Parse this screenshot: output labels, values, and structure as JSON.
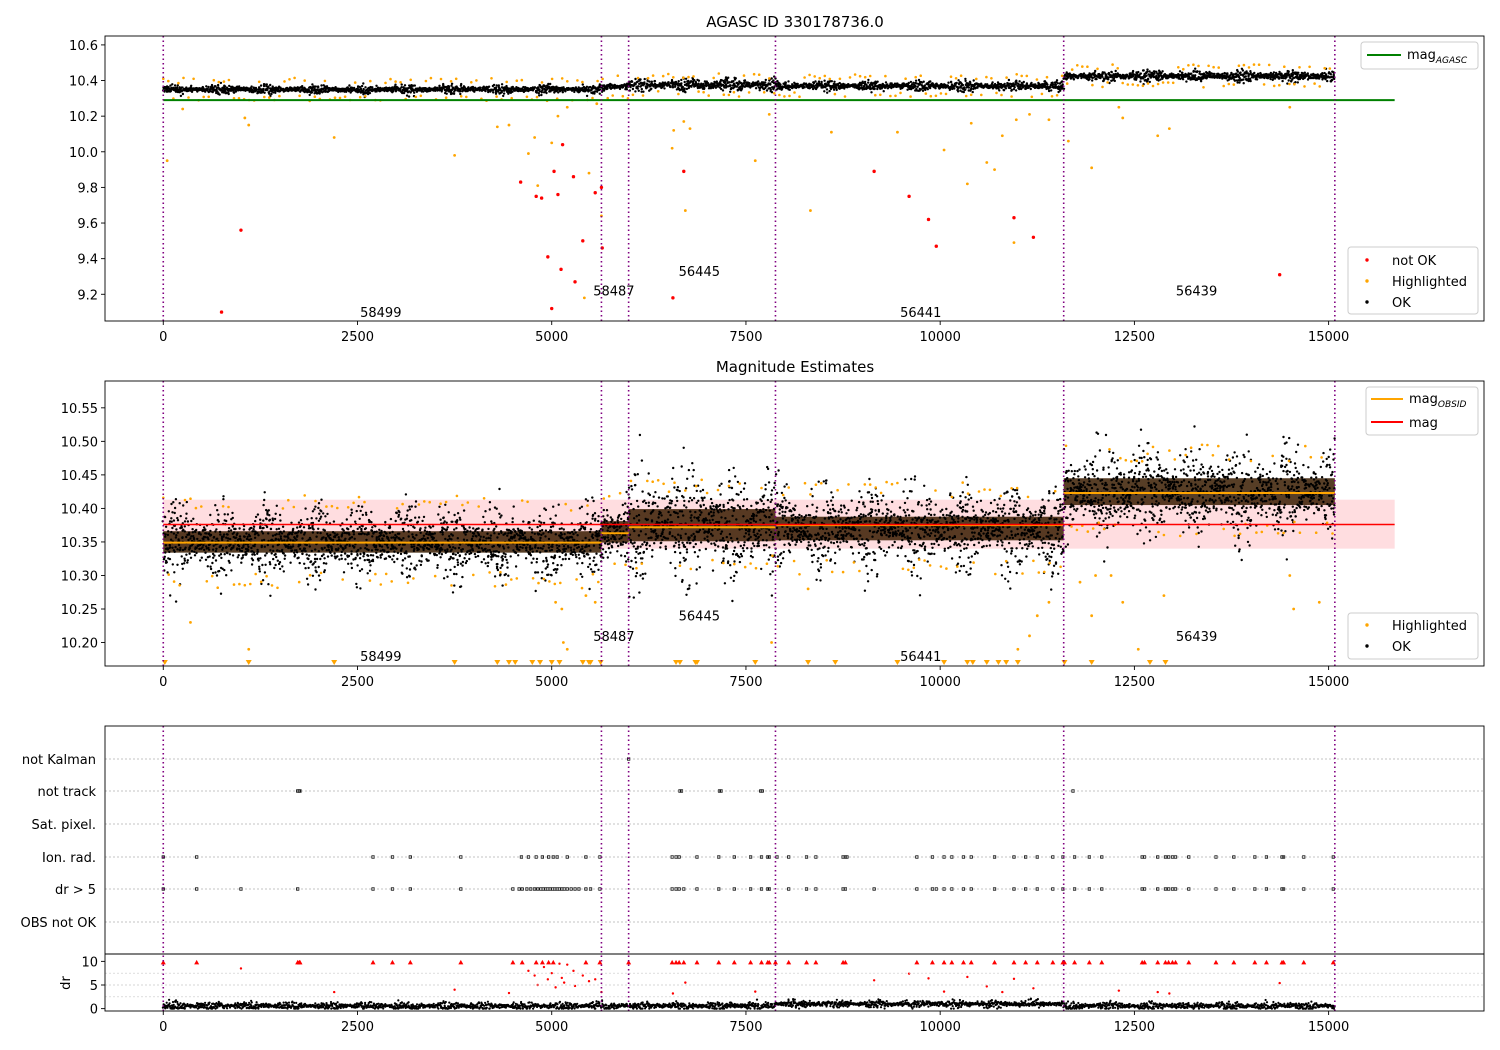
{
  "chart_data": [
    {
      "type": "scatter",
      "title": "AGASC ID 330178736.0",
      "xlim": [
        -750,
        17000
      ],
      "ylim": [
        9.05,
        10.65
      ],
      "x_ticks": [
        0,
        2500,
        5000,
        7500,
        10000,
        12500,
        15000
      ],
      "y_ticks": [
        9.2,
        9.4,
        9.6,
        9.8,
        10.0,
        10.2,
        10.4,
        10.6
      ],
      "y_tick_labels": [
        "9.2",
        "9.4",
        "9.6",
        "9.8",
        "10.0",
        "10.2",
        "10.4",
        "10.6"
      ],
      "obs_boundaries": [
        0,
        5640,
        5990,
        7880,
        11590,
        15080
      ],
      "obs_labels": [
        {
          "text": "58499",
          "x": 2800,
          "y": 9.1
        },
        {
          "text": "58487",
          "x": 5800,
          "y": 9.22
        },
        {
          "text": "56445",
          "x": 6900,
          "y": 9.33
        },
        {
          "text": "56441",
          "x": 9750,
          "y": 9.1
        },
        {
          "text": "56439",
          "x": 13300,
          "y": 9.22
        }
      ],
      "segments": [
        {
          "x0": 0,
          "x1": 5640,
          "level": 10.35,
          "spread": 0.02
        },
        {
          "x0": 5640,
          "x1": 5990,
          "level": 10.365,
          "spread": 0.02
        },
        {
          "x0": 5990,
          "x1": 7880,
          "level": 10.375,
          "spread": 0.03
        },
        {
          "x0": 7880,
          "x1": 11590,
          "level": 10.37,
          "spread": 0.022
        },
        {
          "x0": 11590,
          "x1": 15080,
          "level": 10.425,
          "spread": 0.025
        }
      ],
      "reference_lines": [
        {
          "name": "mag_AGASC",
          "y": 10.29,
          "x0": 0,
          "x1": 15850,
          "color": "#008000"
        }
      ],
      "not_ok_points": [
        [
          750,
          9.1
        ],
        [
          1000,
          9.56
        ],
        [
          4600,
          9.83
        ],
        [
          4800,
          9.75
        ],
        [
          4870,
          9.74
        ],
        [
          4950,
          9.41
        ],
        [
          5000,
          9.12
        ],
        [
          5030,
          9.89
        ],
        [
          5080,
          9.76
        ],
        [
          5120,
          9.34
        ],
        [
          5140,
          10.04
        ],
        [
          5280,
          9.86
        ],
        [
          5300,
          9.27
        ],
        [
          5400,
          9.5
        ],
        [
          5560,
          9.77
        ],
        [
          5640,
          9.8
        ],
        [
          5650,
          9.46
        ],
        [
          6560,
          9.18
        ],
        [
          6700,
          9.89
        ],
        [
          9150,
          9.89
        ],
        [
          9600,
          9.75
        ],
        [
          9850,
          9.62
        ],
        [
          9950,
          9.47
        ],
        [
          10950,
          9.63
        ],
        [
          11200,
          9.52
        ],
        [
          14370,
          9.31
        ]
      ],
      "highlighted_extra_points": [
        [
          50,
          9.95
        ],
        [
          250,
          10.24
        ],
        [
          1050,
          10.19
        ],
        [
          1100,
          10.15
        ],
        [
          2200,
          10.08
        ],
        [
          3750,
          9.98
        ],
        [
          4300,
          10.14
        ],
        [
          4450,
          10.15
        ],
        [
          4700,
          9.99
        ],
        [
          4780,
          10.08
        ],
        [
          4820,
          9.81
        ],
        [
          5000,
          10.05
        ],
        [
          5080,
          10.2
        ],
        [
          5200,
          10.25
        ],
        [
          5420,
          9.18
        ],
        [
          5480,
          9.88
        ],
        [
          5580,
          10.27
        ],
        [
          5640,
          9.64
        ],
        [
          6550,
          10.02
        ],
        [
          6570,
          10.12
        ],
        [
          6700,
          10.17
        ],
        [
          6720,
          9.67
        ],
        [
          6780,
          10.13
        ],
        [
          7620,
          9.95
        ],
        [
          7800,
          10.21
        ],
        [
          8330,
          9.67
        ],
        [
          8600,
          10.11
        ],
        [
          9450,
          10.11
        ],
        [
          10050,
          10.01
        ],
        [
          10350,
          9.82
        ],
        [
          10400,
          10.16
        ],
        [
          10600,
          9.94
        ],
        [
          10700,
          9.9
        ],
        [
          10800,
          10.09
        ],
        [
          10950,
          9.49
        ],
        [
          10980,
          10.18
        ],
        [
          11150,
          10.21
        ],
        [
          11400,
          10.18
        ],
        [
          11650,
          10.06
        ],
        [
          11950,
          9.91
        ],
        [
          12300,
          10.25
        ],
        [
          12350,
          10.19
        ],
        [
          12800,
          10.09
        ],
        [
          12950,
          10.13
        ],
        [
          14500,
          10.25
        ]
      ],
      "legend": [
        {
          "label": "mag",
          "sub": "AGASC",
          "color": "#008000",
          "kind": "line",
          "position": "upper-right"
        },
        {
          "label": "not OK",
          "color": "#ff0000",
          "kind": "point",
          "position": "lower-right"
        },
        {
          "label": "Highlighted",
          "color": "#ffa500",
          "kind": "point",
          "position": "lower-right"
        },
        {
          "label": "OK",
          "color": "#000000",
          "kind": "point",
          "position": "lower-right"
        }
      ]
    },
    {
      "type": "scatter",
      "title": "Magnitude Estimates",
      "xlim": [
        -750,
        17000
      ],
      "ylim": [
        10.165,
        10.59
      ],
      "x_ticks": [
        0,
        2500,
        5000,
        7500,
        10000,
        12500,
        15000
      ],
      "y_ticks": [
        10.2,
        10.25,
        10.3,
        10.35,
        10.4,
        10.45,
        10.5,
        10.55
      ],
      "y_tick_labels": [
        "10.20",
        "10.25",
        "10.30",
        "10.35",
        "10.40",
        "10.45",
        "10.50",
        "10.55"
      ],
      "obs_boundaries": [
        0,
        5640,
        5990,
        7880,
        11590,
        15080
      ],
      "obs_labels": [
        {
          "text": "58499",
          "x": 2800,
          "y": 10.18
        },
        {
          "text": "58487",
          "x": 5800,
          "y": 10.21
        },
        {
          "text": "56445",
          "x": 6900,
          "y": 10.24
        },
        {
          "text": "56441",
          "x": 9750,
          "y": 10.18
        },
        {
          "text": "56439",
          "x": 13300,
          "y": 10.21
        }
      ],
      "segments": [
        {
          "x0": 0,
          "x1": 5640,
          "level": 10.35,
          "spread": 0.02
        },
        {
          "x0": 5640,
          "x1": 5990,
          "level": 10.365,
          "spread": 0.02
        },
        {
          "x0": 5990,
          "x1": 7880,
          "level": 10.375,
          "spread": 0.03
        },
        {
          "x0": 7880,
          "x1": 11590,
          "level": 10.37,
          "spread": 0.022
        },
        {
          "x0": 11590,
          "x1": 15080,
          "level": 10.425,
          "spread": 0.025
        }
      ],
      "mag_band": {
        "x0": 0,
        "x1": 15850,
        "y0": 10.34,
        "y1": 10.413,
        "color": "#ffdde0"
      },
      "mag_line": {
        "y": 10.376,
        "x0": 0,
        "x1": 15850,
        "color": "#ff0000"
      },
      "mag_obsid_levels": [
        {
          "x0": 0,
          "x1": 5640,
          "y": 10.349
        },
        {
          "x0": 5640,
          "x1": 5990,
          "y": 10.363
        },
        {
          "x0": 5990,
          "x1": 7880,
          "y": 10.372
        },
        {
          "x0": 7880,
          "x1": 11590,
          "y": 10.375
        },
        {
          "x0": 11590,
          "x1": 15080,
          "y": 10.423
        }
      ],
      "below_range_markers_x": [
        20,
        1100,
        2200,
        3750,
        4300,
        4450,
        4530,
        4750,
        4850,
        5000,
        5100,
        5400,
        5480,
        5500,
        5630,
        6600,
        6650,
        6850,
        6870,
        7620,
        8300,
        8650,
        9450,
        10050,
        10350,
        10420,
        10600,
        10750,
        10850,
        11000,
        11600,
        11950,
        12700,
        12900
      ],
      "highlighted_extra_points": [
        [
          350,
          10.23
        ],
        [
          1100,
          10.19
        ],
        [
          5050,
          10.26
        ],
        [
          5130,
          10.25
        ],
        [
          5150,
          10.2
        ],
        [
          5200,
          10.19
        ],
        [
          5440,
          10.27
        ],
        [
          5560,
          10.26
        ],
        [
          7830,
          10.2
        ],
        [
          8300,
          10.28
        ],
        [
          11000,
          10.19
        ],
        [
          11150,
          10.21
        ],
        [
          11250,
          10.24
        ],
        [
          11400,
          10.26
        ],
        [
          11800,
          10.29
        ],
        [
          11950,
          10.24
        ],
        [
          12000,
          10.3
        ],
        [
          12200,
          10.3
        ],
        [
          12350,
          10.26
        ],
        [
          12550,
          10.19
        ],
        [
          12880,
          10.27
        ],
        [
          14500,
          10.3
        ],
        [
          14550,
          10.25
        ],
        [
          14880,
          10.26
        ]
      ],
      "legend": [
        {
          "label": "mag",
          "sub": "OBSID",
          "color": "#ffa500",
          "kind": "line",
          "position": "upper-right"
        },
        {
          "label": "mag",
          "color": "#ff0000",
          "kind": "line",
          "position": "upper-right"
        },
        {
          "label": "Highlighted",
          "color": "#ffa500",
          "kind": "point",
          "position": "lower-right"
        },
        {
          "label": "OK",
          "color": "#000000",
          "kind": "point",
          "position": "lower-right"
        }
      ]
    },
    {
      "type": "scatter",
      "xlim": [
        -750,
        17000
      ],
      "x_ticks": [
        0,
        2500,
        5000,
        7500,
        10000,
        12500,
        15000
      ],
      "obs_boundaries": [
        0,
        5640,
        5990,
        7880,
        11590,
        15080
      ],
      "flag_rows": [
        "not Kalman",
        "not track",
        "Sat. pixel.",
        "Ion. rad.",
        "dr > 5",
        "OBS not OK"
      ],
      "flag_x": {
        "not Kalman": [
          5990
        ],
        "not track": [
          1730,
          1750,
          1760,
          6650,
          6670,
          7160,
          7180,
          7690,
          7710,
          11710
        ],
        "Sat. pixel.": [],
        "Ion. rad.": [
          0,
          430,
          2700,
          2950,
          3180,
          3830,
          4610,
          4700,
          4800,
          4880,
          4960,
          5020,
          5070,
          5200,
          5440,
          5620,
          6550,
          6600,
          6640,
          6870,
          7150,
          7350,
          7560,
          7700,
          7780,
          7800,
          7900,
          8050,
          8280,
          8400,
          8750,
          8780,
          8800,
          9700,
          9900,
          10050,
          10150,
          10300,
          10400,
          10700,
          10950,
          11100,
          11250,
          11450,
          11580,
          11730,
          11920,
          12080,
          12600,
          12630,
          12800,
          12900,
          12940,
          12990,
          13030,
          13200,
          13550,
          13780,
          14050,
          14200,
          14400,
          14420,
          14680,
          15060
        ],
        "dr > 5": [
          0,
          430,
          1000,
          1730,
          2700,
          2950,
          3180,
          3830,
          4500,
          4580,
          4620,
          4680,
          4730,
          4780,
          4820,
          4860,
          4890,
          4920,
          4950,
          4980,
          5010,
          5040,
          5070,
          5100,
          5130,
          5160,
          5200,
          5250,
          5300,
          5350,
          5440,
          5500,
          5620,
          6550,
          6600,
          6640,
          6700,
          6870,
          7150,
          7350,
          7560,
          7700,
          7780,
          7800,
          8050,
          8280,
          8400,
          8750,
          8780,
          9150,
          9700,
          9900,
          9950,
          10050,
          10150,
          10300,
          10400,
          10700,
          10950,
          11100,
          11250,
          11450,
          11580,
          11730,
          11920,
          12080,
          12600,
          12630,
          12800,
          12900,
          12940,
          12990,
          13030,
          13200,
          13550,
          13780,
          14050,
          14200,
          14400,
          14420,
          14680,
          15060
        ],
        "OBS not OK": []
      },
      "dr": {
        "ylabel": "dr",
        "ylim": [
          -0.5,
          10.5
        ],
        "y_ticks": [
          0,
          5,
          10
        ],
        "y_tick_labels": [
          "0",
          "5",
          "10"
        ],
        "baseline_level": 0.6,
        "baseline_spread": 0.35,
        "step_up_from_x": 7880,
        "step_up_to_x": 11590,
        "step_up_level": 1.0,
        "clipped_x": [
          0,
          430,
          1730,
          1750,
          1760,
          2700,
          2950,
          3180,
          3830,
          4500,
          4620,
          4800,
          4880,
          4960,
          5020,
          5440,
          5620,
          5990,
          6550,
          6600,
          6640,
          6700,
          6870,
          7150,
          7350,
          7560,
          7700,
          7780,
          7800,
          7880,
          8050,
          8280,
          8400,
          8750,
          8780,
          9700,
          9900,
          10050,
          10150,
          10300,
          10400,
          10700,
          10950,
          11100,
          11250,
          11450,
          11580,
          11600,
          11730,
          11920,
          12080,
          12600,
          12630,
          12800,
          12900,
          12940,
          12990,
          13030,
          13200,
          13550,
          13780,
          14050,
          14200,
          14400,
          14420,
          14680,
          15060
        ],
        "mid_points": [
          [
            1000,
            8.5
          ],
          [
            2200,
            3.5
          ],
          [
            3750,
            4.0
          ],
          [
            4450,
            3.3
          ],
          [
            4700,
            8.0
          ],
          [
            4780,
            7.0
          ],
          [
            4820,
            5.0
          ],
          [
            4900,
            8.8
          ],
          [
            4950,
            6.2
          ],
          [
            5000,
            7.5
          ],
          [
            5050,
            4.5
          ],
          [
            5100,
            9.5
          ],
          [
            5130,
            6.5
          ],
          [
            5160,
            5.5
          ],
          [
            5200,
            9.3
          ],
          [
            5280,
            8.0
          ],
          [
            5300,
            4.8
          ],
          [
            5400,
            7.0
          ],
          [
            5480,
            5.8
          ],
          [
            5560,
            6.2
          ],
          [
            5640,
            3.5
          ],
          [
            6560,
            3.2
          ],
          [
            6720,
            5.5
          ],
          [
            7620,
            3.6
          ],
          [
            9150,
            6.0
          ],
          [
            9600,
            7.4
          ],
          [
            9850,
            6.4
          ],
          [
            10050,
            3.6
          ],
          [
            10350,
            6.7
          ],
          [
            10600,
            4.7
          ],
          [
            10800,
            3.5
          ],
          [
            10950,
            6.3
          ],
          [
            11200,
            4.3
          ],
          [
            12300,
            3.8
          ],
          [
            12800,
            3.5
          ],
          [
            12950,
            3.2
          ],
          [
            14370,
            5.4
          ]
        ]
      },
      "legend": []
    }
  ]
}
